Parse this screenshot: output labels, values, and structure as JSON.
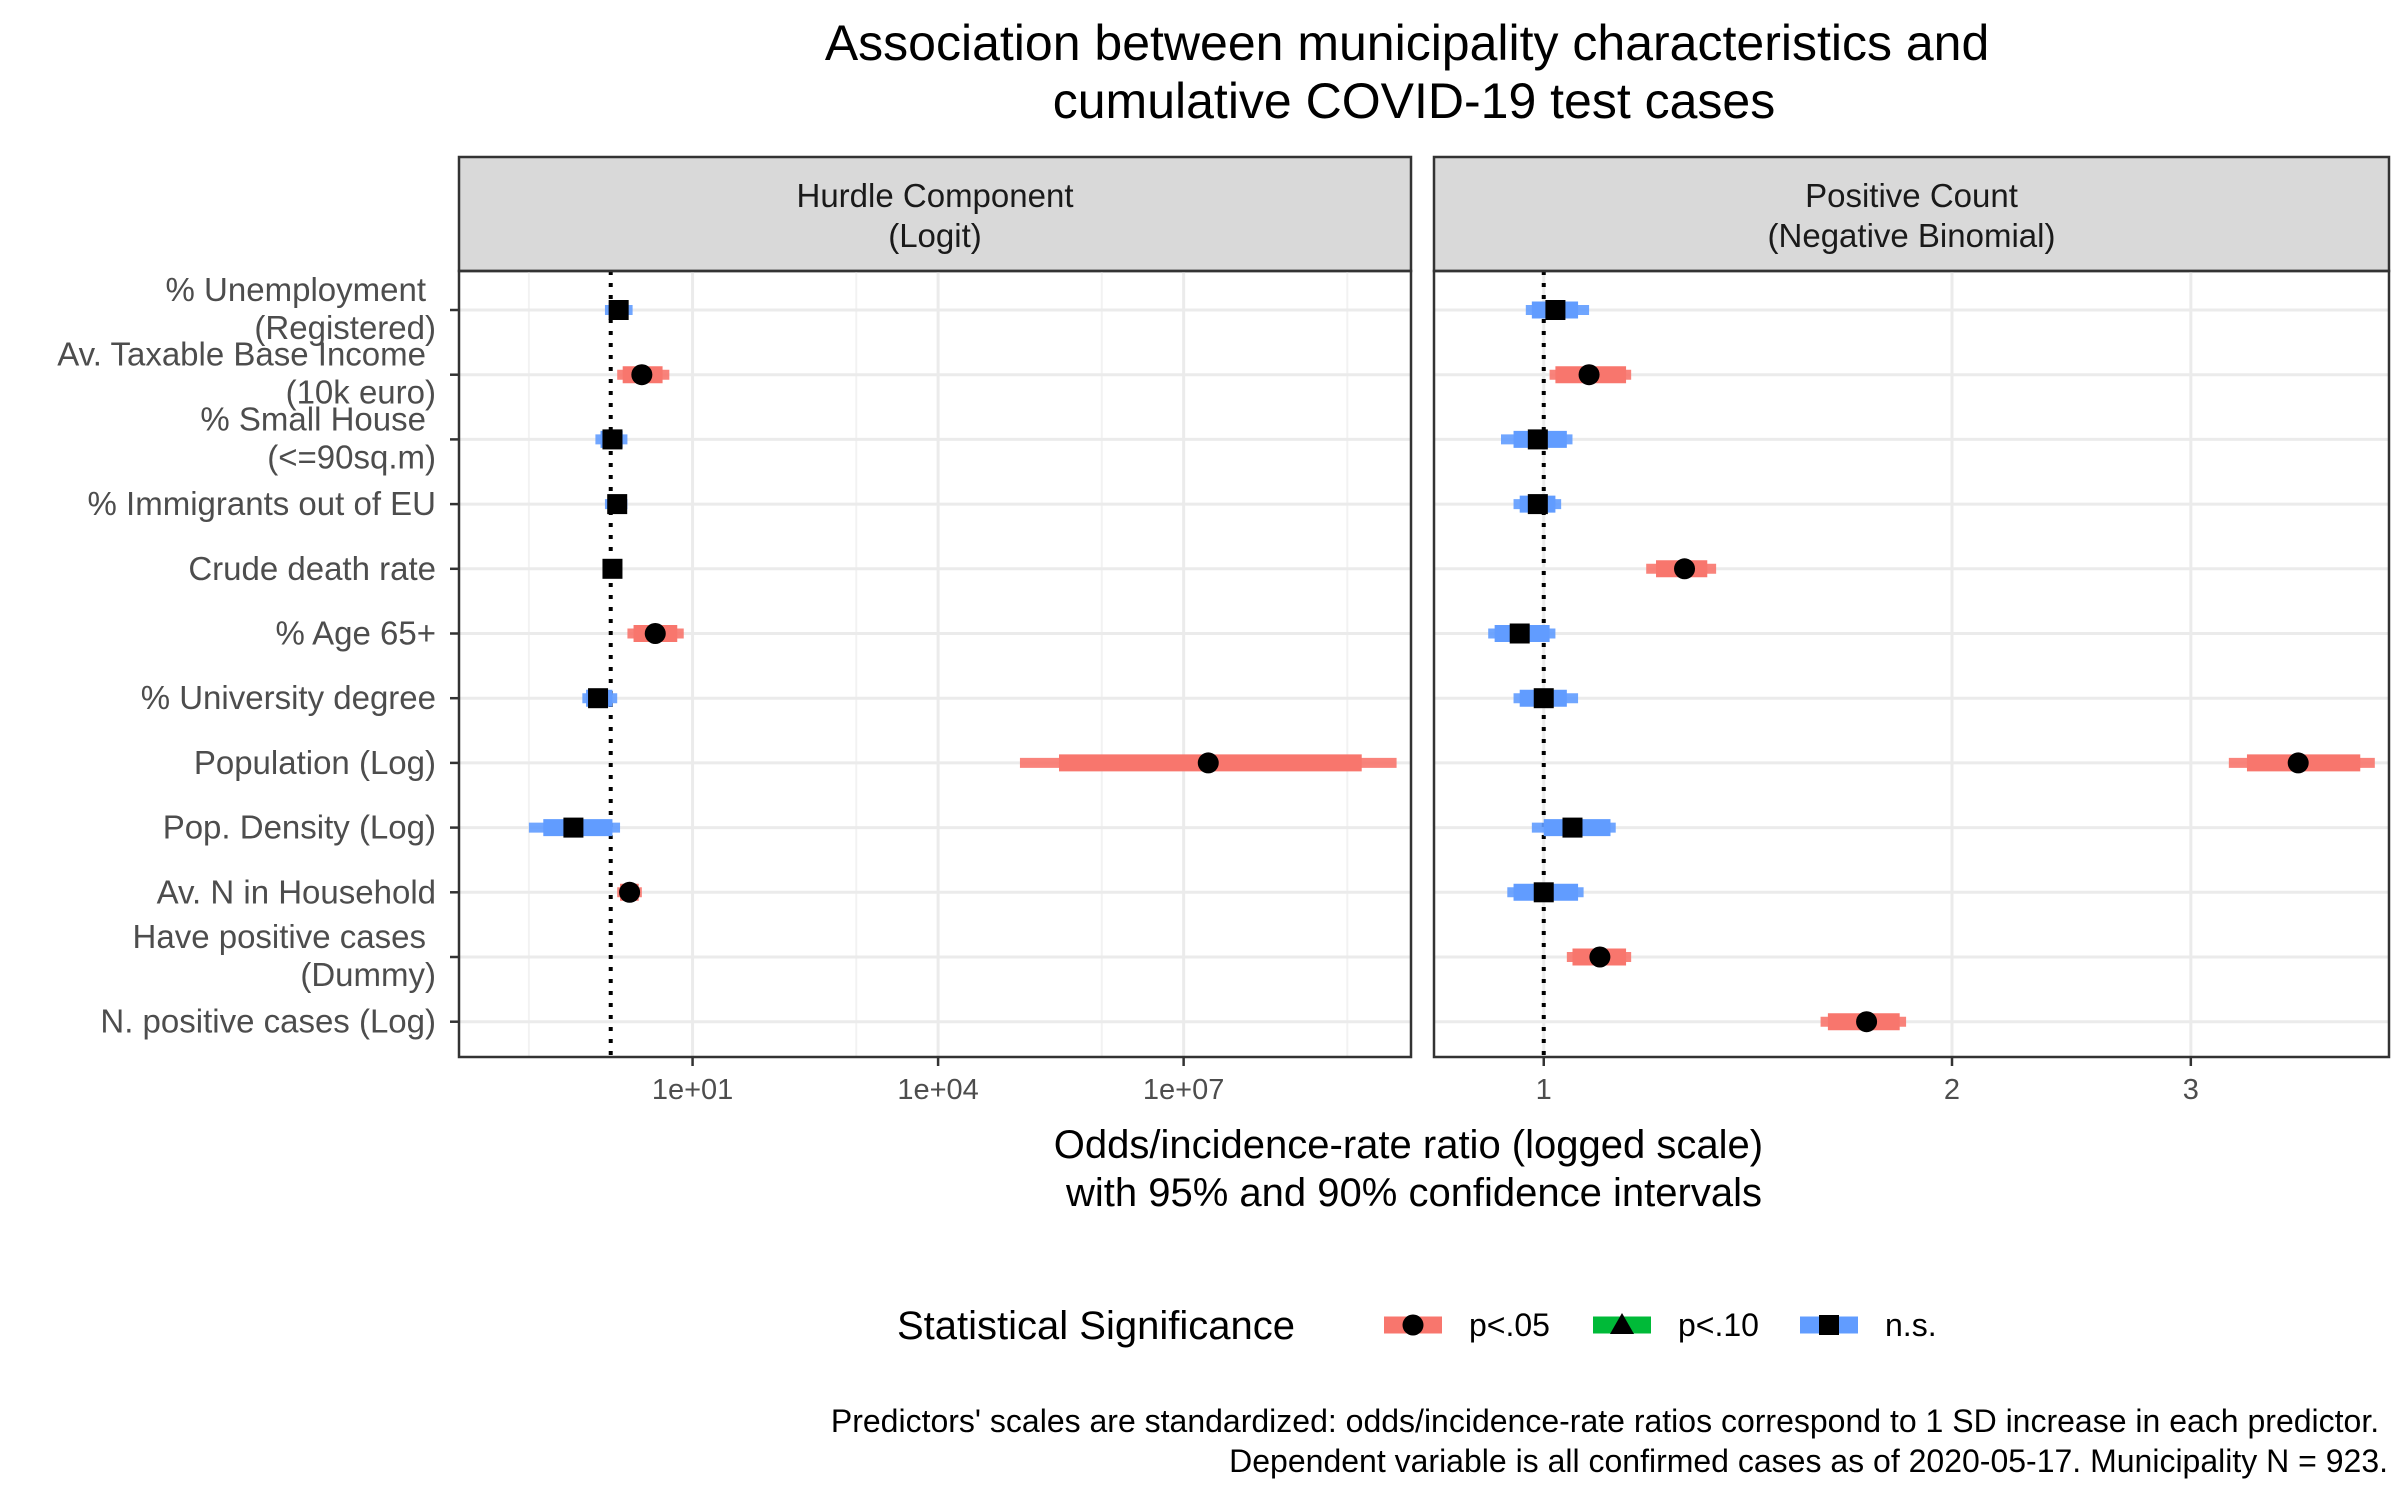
{
  "chart_data": {
    "type": "forest",
    "title_lines": [
      "Association between municipality characteristics and",
      "cumulative COVID-19 test cases"
    ],
    "xlabel_lines": [
      "Odds/incidence-rate ratio (logged scale)",
      "with 95% and 90% confidence intervals"
    ],
    "caption_lines": [
      "Predictors' scales are standardized: odds/incidence-rate ratios correspond to 1 SD increase in each predictor.",
      "Dependent variable is all confirmed cases as of 2020-05-17. Municipality N = 923."
    ],
    "legend": {
      "title": "Statistical Significance",
      "items": [
        {
          "label": "p<.05",
          "color": "#F8766D",
          "shape": "circle"
        },
        {
          "label": "p<.10",
          "color": "#00BA38",
          "shape": "triangle"
        },
        {
          "label": "n.s.",
          "color": "#619CFF",
          "shape": "square"
        }
      ]
    },
    "colors": {
      "sig05": "#F8766D",
      "sig10": "#00BA38",
      "ns": "#619CFF",
      "point": "#000000"
    },
    "categories": [
      [
        "% Unemployment",
        "(Registered)"
      ],
      [
        "Av. Taxable Base Income",
        "(10k euro)"
      ],
      [
        "% Small House",
        "(<=90sq.m)"
      ],
      [
        "% Immigrants out of EU"
      ],
      [
        "Crude death rate"
      ],
      [
        "% Age 65+"
      ],
      [
        "% University degree"
      ],
      [
        "Population (Log)"
      ],
      [
        "Pop. Density (Log)"
      ],
      [
        "Av. N in Household"
      ],
      [
        "Have positive cases",
        "(Dummy)"
      ],
      [
        "N. positive cases (Log)"
      ]
    ],
    "panels": [
      {
        "strip_lines": [
          "Hurdle Component",
          "(Logit)"
        ],
        "scale": "log10",
        "xlim": [
          0.014,
          6000000000.0
        ],
        "ticks": [
          {
            "value": 10,
            "label": "1e+01"
          },
          {
            "value": 10000,
            "label": "1e+04"
          },
          {
            "value": 10000000,
            "label": "1e+07"
          }
        ],
        "minor_ticks": [
          0.1,
          1000,
          1000000,
          1000000000
        ],
        "points": [
          {
            "category": 0,
            "est": 1.25,
            "ci95": [
              0.85,
              1.85
            ],
            "ci90": [
              0.95,
              1.65
            ],
            "sig": "ns"
          },
          {
            "category": 1,
            "est": 2.4,
            "ci95": [
              1.2,
              5.2
            ],
            "ci90": [
              1.4,
              4.3
            ],
            "sig": "sig05"
          },
          {
            "category": 2,
            "est": 1.05,
            "ci95": [
              0.65,
              1.6
            ],
            "ci90": [
              0.75,
              1.4
            ],
            "sig": "ns"
          },
          {
            "category": 3,
            "est": 1.2,
            "ci95": [
              0.85,
              1.6
            ],
            "ci90": [
              0.95,
              1.45
            ],
            "sig": "ns"
          },
          {
            "category": 4,
            "est": 1.05,
            "ci95": [
              0.95,
              1.18
            ],
            "ci90": [
              0.98,
              1.12
            ],
            "sig": "ns"
          },
          {
            "category": 5,
            "est": 3.5,
            "ci95": [
              1.6,
              7.8
            ],
            "ci90": [
              1.9,
              6.5
            ],
            "sig": "sig05"
          },
          {
            "category": 6,
            "est": 0.7,
            "ci95": [
              0.45,
              1.2
            ],
            "ci90": [
              0.5,
              1.05
            ],
            "sig": "ns"
          },
          {
            "category": 7,
            "est": 20000000,
            "ci95": [
              100000,
              4000000000
            ],
            "ci90": [
              300000,
              1500000000
            ],
            "sig": "sig05"
          },
          {
            "category": 8,
            "est": 0.35,
            "ci95": [
              0.1,
              1.3
            ],
            "ci90": [
              0.15,
              1.05
            ],
            "sig": "ns"
          },
          {
            "category": 9,
            "est": 1.7,
            "ci95": [
              1.2,
              2.4
            ],
            "ci90": [
              1.3,
              2.2
            ],
            "sig": "sig05"
          }
        ]
      },
      {
        "strip_lines": [
          "Positive Count",
          "(Negative Binomial)"
        ],
        "scale": "log10",
        "xlim": [
          0.83,
          4.2
        ],
        "ticks": [
          {
            "value": 1,
            "label": "1"
          },
          {
            "value": 2,
            "label": "2"
          },
          {
            "value": 3,
            "label": "3"
          }
        ],
        "minor_ticks": [],
        "points": [
          {
            "category": 0,
            "est": 1.02,
            "ci95": [
              0.97,
              1.08
            ],
            "ci90": [
              0.98,
              1.06
            ],
            "sig": "ns"
          },
          {
            "category": 1,
            "est": 1.08,
            "ci95": [
              1.01,
              1.16
            ],
            "ci90": [
              1.02,
              1.15
            ],
            "sig": "sig05"
          },
          {
            "category": 2,
            "est": 0.99,
            "ci95": [
              0.93,
              1.05
            ],
            "ci90": [
              0.95,
              1.04
            ],
            "sig": "ns"
          },
          {
            "category": 3,
            "est": 0.99,
            "ci95": [
              0.95,
              1.03
            ],
            "ci90": [
              0.96,
              1.02
            ],
            "sig": "ns"
          },
          {
            "category": 4,
            "est": 1.27,
            "ci95": [
              1.19,
              1.34
            ],
            "ci90": [
              1.21,
              1.32
            ],
            "sig": "sig05"
          },
          {
            "category": 5,
            "est": 0.96,
            "ci95": [
              0.91,
              1.02
            ],
            "ci90": [
              0.92,
              1.01
            ],
            "sig": "ns"
          },
          {
            "category": 6,
            "est": 1.0,
            "ci95": [
              0.95,
              1.06
            ],
            "ci90": [
              0.96,
              1.04
            ],
            "sig": "ns"
          },
          {
            "category": 7,
            "est": 3.6,
            "ci95": [
              3.2,
              4.1
            ],
            "ci90": [
              3.3,
              4.0
            ],
            "sig": "sig05"
          },
          {
            "category": 8,
            "est": 1.05,
            "ci95": [
              0.98,
              1.13
            ],
            "ci90": [
              1.0,
              1.12
            ],
            "sig": "ns"
          },
          {
            "category": 9,
            "est": 1.0,
            "ci95": [
              0.94,
              1.07
            ],
            "ci90": [
              0.95,
              1.06
            ],
            "sig": "ns"
          },
          {
            "category": 10,
            "est": 1.1,
            "ci95": [
              1.04,
              1.16
            ],
            "ci90": [
              1.05,
              1.15
            ],
            "sig": "sig05"
          },
          {
            "category": 11,
            "est": 1.73,
            "ci95": [
              1.6,
              1.85
            ],
            "ci90": [
              1.62,
              1.83
            ],
            "sig": "sig05"
          }
        ]
      }
    ],
    "reference_line": 1
  }
}
